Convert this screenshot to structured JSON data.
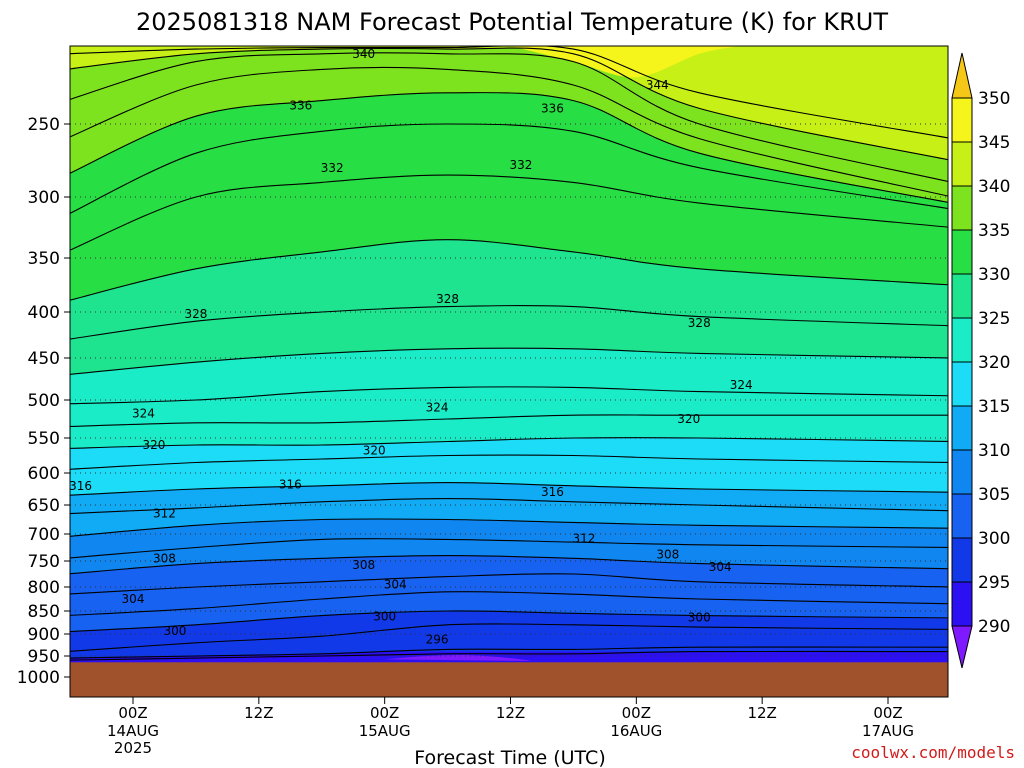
{
  "chart_data": {
    "type": "heatmap",
    "title": "2025081318 NAM Forecast Potential Temperature (K) for KRUT",
    "xlabel": "Forecast Time (UTC)",
    "ylabel": "",
    "credit": "coolwx.com/models",
    "yticks": [
      "250",
      "300",
      "350",
      "400",
      "450",
      "500",
      "550",
      "600",
      "650",
      "700",
      "750",
      "800",
      "850",
      "900",
      "950",
      "1000"
    ],
    "ytick_values": [
      250,
      300,
      350,
      400,
      450,
      500,
      550,
      600,
      650,
      700,
      750,
      800,
      850,
      900,
      950,
      1000
    ],
    "ylim": [
      200,
      1040
    ],
    "y_axis_inverted": true,
    "xlim": [
      -6,
      66
    ],
    "xticks": [
      {
        "hour": 0,
        "line1": "00Z",
        "line2": "14AUG",
        "line3": "2025"
      },
      {
        "hour": 12,
        "line1": "12Z",
        "line2": "",
        "line3": ""
      },
      {
        "hour": 24,
        "line1": "00Z",
        "line2": "15AUG",
        "line3": ""
      },
      {
        "hour": 36,
        "line1": "12Z",
        "line2": "",
        "line3": ""
      },
      {
        "hour": 48,
        "line1": "00Z",
        "line2": "16AUG",
        "line3": ""
      },
      {
        "hour": 60,
        "line1": "12Z",
        "line2": "",
        "line3": ""
      },
      {
        "hour": 72,
        "line1": "00Z",
        "line2": "17AUG",
        "line3": ""
      }
    ],
    "grid": "dotted horizontal lines at pressure ticks",
    "surface_pressure": 965,
    "surface_color": "#a0522d",
    "colorbar": {
      "levels": [
        290,
        295,
        300,
        305,
        310,
        315,
        320,
        325,
        330,
        335,
        340,
        345,
        350
      ],
      "colors": [
        "#7f19ff",
        "#2c0ff2",
        "#1239e8",
        "#1762f0",
        "#0f86f0",
        "#11aaf5",
        "#1cdcf8",
        "#19ecc7",
        "#1ee38f",
        "#27de44",
        "#7ee31f",
        "#c6f016",
        "#f6f51b",
        "#f5c818"
      ],
      "labels": [
        "290",
        "295",
        "300",
        "305",
        "310",
        "315",
        "320",
        "325",
        "330",
        "335",
        "340",
        "345",
        "350"
      ]
    },
    "contour_interval": 2,
    "isentropes": [
      {
        "theta": 296,
        "p": [
          960,
          955,
          950,
          945,
          945,
          940,
          940
        ]
      },
      {
        "theta": 298,
        "p": [
          955,
          950,
          945,
          935,
          935,
          930,
          930
        ]
      },
      {
        "theta": 300,
        "p": [
          940,
          920,
          905,
          880,
          880,
          885,
          890
        ]
      },
      {
        "theta": 302,
        "p": [
          895,
          880,
          860,
          850,
          855,
          860,
          865
        ]
      },
      {
        "theta": 304,
        "p": [
          860,
          845,
          825,
          810,
          815,
          825,
          835
        ]
      },
      {
        "theta": 306,
        "p": [
          815,
          800,
          790,
          780,
          775,
          790,
          800
        ]
      },
      {
        "theta": 308,
        "p": [
          775,
          755,
          745,
          740,
          745,
          755,
          765
        ]
      },
      {
        "theta": 310,
        "p": [
          745,
          725,
          710,
          710,
          715,
          720,
          725
        ]
      },
      {
        "theta": 312,
        "p": [
          705,
          685,
          675,
          675,
          680,
          685,
          690
        ]
      },
      {
        "theta": 314,
        "p": [
          665,
          655,
          645,
          640,
          645,
          650,
          660
        ]
      },
      {
        "theta": 316,
        "p": [
          635,
          625,
          620,
          615,
          620,
          625,
          630
        ]
      },
      {
        "theta": 318,
        "p": [
          595,
          585,
          580,
          575,
          575,
          580,
          585
        ]
      },
      {
        "theta": 320,
        "p": [
          565,
          560,
          560,
          555,
          550,
          550,
          555
        ]
      },
      {
        "theta": 322,
        "p": [
          535,
          530,
          530,
          525,
          520,
          520,
          520
        ]
      },
      {
        "theta": 324,
        "p": [
          505,
          500,
          490,
          485,
          485,
          490,
          495
        ]
      },
      {
        "theta": 326,
        "p": [
          470,
          455,
          445,
          440,
          440,
          445,
          450
        ]
      },
      {
        "theta": 328,
        "p": [
          430,
          410,
          400,
          395,
          395,
          405,
          415
        ]
      },
      {
        "theta": 330,
        "p": [
          390,
          360,
          345,
          335,
          345,
          360,
          375
        ]
      },
      {
        "theta": 332,
        "p": [
          345,
          300,
          290,
          285,
          290,
          305,
          325
        ]
      },
      {
        "theta": 334,
        "p": [
          315,
          270,
          255,
          250,
          255,
          280,
          310
        ]
      },
      {
        "theta": 336,
        "p": [
          285,
          245,
          235,
          230,
          235,
          270,
          305
        ]
      },
      {
        "theta": 338,
        "p": [
          260,
          225,
          215,
          215,
          225,
          260,
          300
        ]
      },
      {
        "theta": 340,
        "p": [
          235,
          210,
          205,
          205,
          210,
          250,
          290
        ]
      },
      {
        "theta": 342,
        "p": [
          215,
          205,
          202,
          202,
          205,
          240,
          275
        ]
      },
      {
        "theta": 344,
        "p": [
          205,
          202,
          201,
          201,
          202,
          230,
          260
        ]
      }
    ],
    "isentrope_hours": [
      -6,
      6,
      18,
      30,
      42,
      54,
      66
    ],
    "contour_labels": [
      {
        "text": "340",
        "hour": 22,
        "p": 205
      },
      {
        "text": "344",
        "hour": 50,
        "p": 225
      },
      {
        "text": "336",
        "hour": 16,
        "p": 238
      },
      {
        "text": "336",
        "hour": 40,
        "p": 240
      },
      {
        "text": "332",
        "hour": 19,
        "p": 280
      },
      {
        "text": "332",
        "hour": 37,
        "p": 278
      },
      {
        "text": "328",
        "hour": 6,
        "p": 402
      },
      {
        "text": "328",
        "hour": 30,
        "p": 388
      },
      {
        "text": "328",
        "hour": 54,
        "p": 412
      },
      {
        "text": "324",
        "hour": 1,
        "p": 518
      },
      {
        "text": "324",
        "hour": 29,
        "p": 510
      },
      {
        "text": "324",
        "hour": 58,
        "p": 482
      },
      {
        "text": "320",
        "hour": 2,
        "p": 560
      },
      {
        "text": "320",
        "hour": 23,
        "p": 568
      },
      {
        "text": "320",
        "hour": 53,
        "p": 525
      },
      {
        "text": "316",
        "hour": -5,
        "p": 620
      },
      {
        "text": "316",
        "hour": 15,
        "p": 618
      },
      {
        "text": "316",
        "hour": 40,
        "p": 630
      },
      {
        "text": "312",
        "hour": 3,
        "p": 665
      },
      {
        "text": "312",
        "hour": 43,
        "p": 708
      },
      {
        "text": "308",
        "hour": 3,
        "p": 745
      },
      {
        "text": "308",
        "hour": 22,
        "p": 758
      },
      {
        "text": "308",
        "hour": 51,
        "p": 738
      },
      {
        "text": "304",
        "hour": 0,
        "p": 825
      },
      {
        "text": "304",
        "hour": 25,
        "p": 795
      },
      {
        "text": "304",
        "hour": 56,
        "p": 762
      },
      {
        "text": "300",
        "hour": 4,
        "p": 893
      },
      {
        "text": "300",
        "hour": 24,
        "p": 862
      },
      {
        "text": "300",
        "hour": 54,
        "p": 864
      },
      {
        "text": "296",
        "hour": 29,
        "p": 912
      }
    ]
  }
}
